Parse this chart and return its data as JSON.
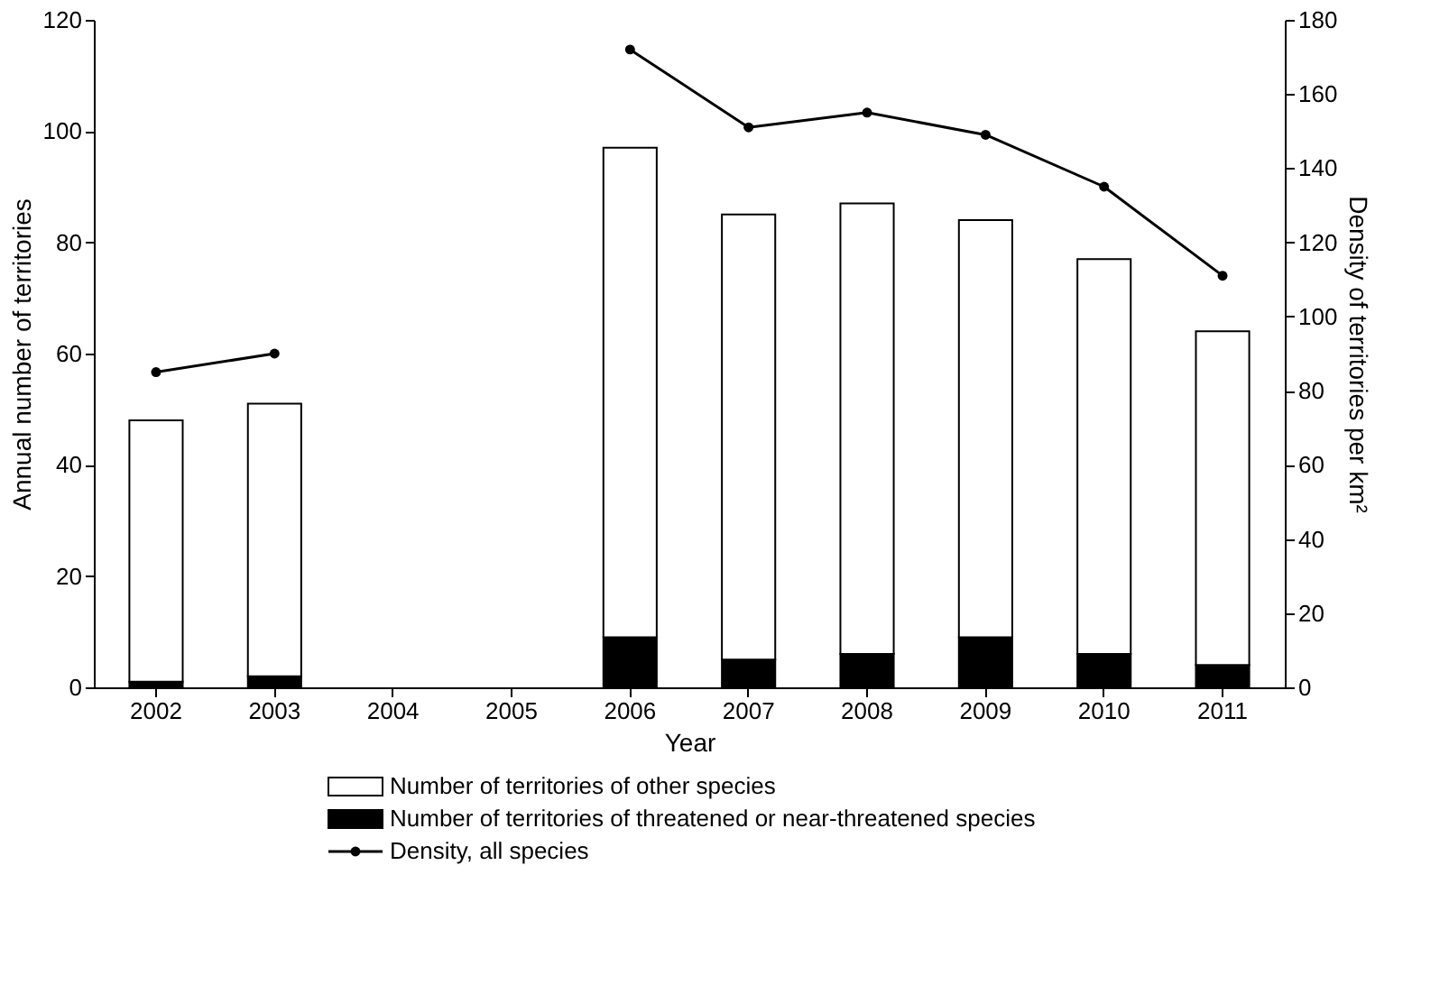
{
  "chart_data": {
    "type": "bar",
    "stacked": true,
    "xlabel": "Year",
    "ylabel": "Annual number of territories",
    "y2label": "Density of territories per km²",
    "categories": [
      "2002",
      "2003",
      "2004",
      "2005",
      "2006",
      "2007",
      "2008",
      "2009",
      "2010",
      "2011"
    ],
    "series": [
      {
        "name": "Number of territories of threatened or near-threatened species",
        "color": "#000000",
        "values": [
          1,
          2,
          null,
          null,
          9,
          5,
          6,
          9,
          6,
          4
        ]
      },
      {
        "name": "Number of territories of other species",
        "color": "#ffffff",
        "values": [
          47,
          49,
          null,
          null,
          88,
          80,
          81,
          75,
          71,
          60
        ]
      },
      {
        "name": "Density, all species",
        "type": "line",
        "axis": "y2",
        "color": "#000000",
        "values": [
          85,
          90,
          null,
          null,
          172,
          151,
          155,
          149,
          135,
          111
        ]
      }
    ],
    "ylim": [
      0,
      120
    ],
    "yticks": [
      0,
      20,
      40,
      60,
      80,
      100,
      120
    ],
    "y2lim": [
      0,
      180
    ],
    "y2ticks": [
      0,
      20,
      40,
      60,
      80,
      100,
      120,
      140,
      160,
      180
    ],
    "grid": false,
    "legend": "bottom",
    "marker": "circle"
  }
}
